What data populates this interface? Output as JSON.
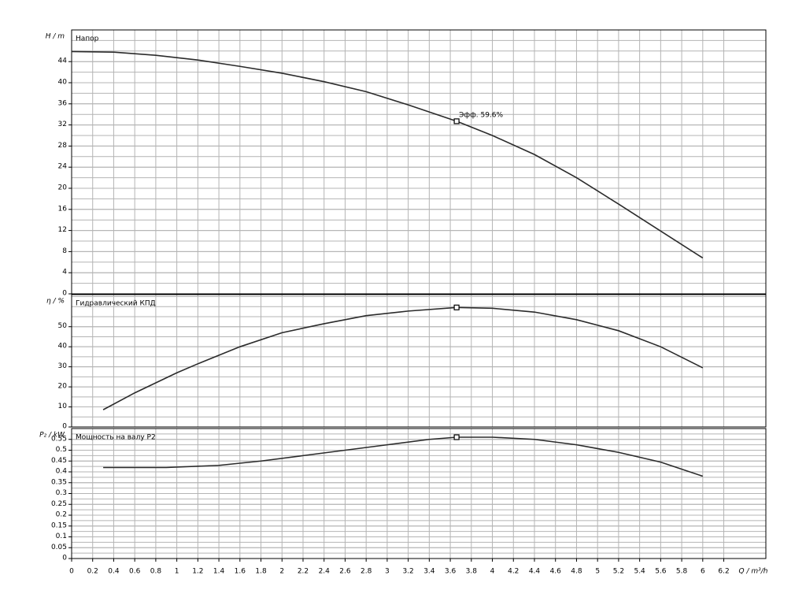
{
  "chart_data": [
    {
      "type": "line",
      "title": "Напор",
      "y_label": "H / m",
      "color": "#2b2b2b",
      "x": [
        0,
        0.4,
        0.8,
        1.2,
        1.6,
        2.0,
        2.4,
        2.8,
        3.2,
        3.66,
        4.0,
        4.4,
        4.8,
        5.2,
        5.6,
        6.0
      ],
      "values": [
        45.9,
        45.8,
        45.2,
        44.3,
        43.1,
        41.8,
        40.2,
        38.3,
        35.8,
        32.7,
        30.0,
        26.4,
        22.0,
        17.0,
        11.9,
        6.8
      ],
      "marker": {
        "x": 3.66,
        "y": 32.7,
        "label": "Эфф.  59.6%"
      },
      "xlim": [
        0,
        6.6
      ],
      "xticks": [
        0,
        0.2,
        0.4,
        0.6,
        0.8,
        1,
        1.2,
        1.4,
        1.6,
        1.8,
        2,
        2.2,
        2.4,
        2.6,
        2.8,
        3,
        3.2,
        3.4,
        3.6,
        3.8,
        4,
        4.2,
        4.4,
        4.6,
        4.8,
        5,
        5.2,
        5.4,
        5.6,
        5.8,
        6,
        6.2
      ],
      "ylim": [
        0,
        50
      ],
      "yticks": [
        0,
        4,
        8,
        12,
        16,
        20,
        24,
        28,
        32,
        36,
        40,
        44
      ],
      "grid": true
    },
    {
      "type": "line",
      "title": "Гидравлический КПД",
      "y_label": "η / %",
      "color": "#2b2b2b",
      "x": [
        0.3,
        0.6,
        1.0,
        1.2,
        1.6,
        2.0,
        2.4,
        2.8,
        3.2,
        3.66,
        4.0,
        4.4,
        4.8,
        5.2,
        5.6,
        6.0
      ],
      "values": [
        8.6,
        17,
        27,
        31.5,
        40,
        47,
        51.5,
        55.5,
        57.8,
        59.6,
        59.2,
        57.3,
        53.5,
        48,
        40,
        29.5
      ],
      "marker": {
        "x": 3.66,
        "y": 59.6
      },
      "xlim": [
        0,
        6.6
      ],
      "xticks": [
        0,
        0.2,
        0.4,
        0.6,
        0.8,
        1,
        1.2,
        1.4,
        1.6,
        1.8,
        2,
        2.2,
        2.4,
        2.6,
        2.8,
        3,
        3.2,
        3.4,
        3.6,
        3.8,
        4,
        4.2,
        4.4,
        4.6,
        4.8,
        5,
        5.2,
        5.4,
        5.6,
        5.8,
        6,
        6.2
      ],
      "ylim": [
        0,
        66
      ],
      "yticks": [
        0,
        10,
        20,
        30,
        40,
        50
      ],
      "grid": true
    },
    {
      "type": "line",
      "title": "Мощность на валу P2",
      "y_label": "P₂ / kW",
      "color": "#2b2b2b",
      "x": [
        0.3,
        0.9,
        1.4,
        1.8,
        2.2,
        2.6,
        3.0,
        3.4,
        3.66,
        4.0,
        4.4,
        4.8,
        5.2,
        5.6,
        6.0
      ],
      "values": [
        0.42,
        0.42,
        0.43,
        0.45,
        0.475,
        0.5,
        0.525,
        0.55,
        0.56,
        0.56,
        0.55,
        0.525,
        0.49,
        0.445,
        0.38
      ],
      "marker": {
        "x": 3.66,
        "y": 0.56
      },
      "xlim": [
        0,
        6.6
      ],
      "xticks": [
        0,
        0.2,
        0.4,
        0.6,
        0.8,
        1,
        1.2,
        1.4,
        1.6,
        1.8,
        2,
        2.2,
        2.4,
        2.6,
        2.8,
        3,
        3.2,
        3.4,
        3.6,
        3.8,
        4,
        4.2,
        4.4,
        4.6,
        4.8,
        5,
        5.2,
        5.4,
        5.6,
        5.8,
        6,
        6.2
      ],
      "x_label": "Q / m³/h",
      "ylim": [
        0,
        0.6
      ],
      "yticks": [
        0,
        0.05,
        0.1,
        0.15,
        0.2,
        0.25,
        0.3,
        0.35,
        0.4,
        0.45,
        0.5,
        0.55
      ],
      "grid": true
    }
  ]
}
